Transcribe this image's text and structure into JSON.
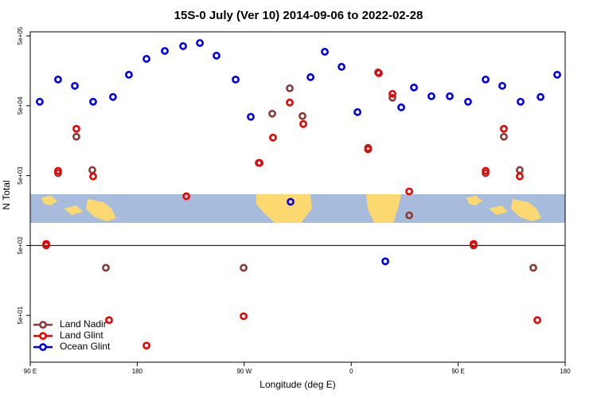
{
  "chart_data": {
    "type": "scatter",
    "title": "15S-0 July (Ver 10)   2014-09-06 to 2022-02-28",
    "xlabel": "Longitude (deg E)",
    "ylabel": "N Total",
    "log_y": true,
    "legend": "lower left",
    "xlim": [
      90,
      540
    ],
    "xticks": [
      {
        "value": 90,
        "label": "90 E"
      },
      {
        "value": 180,
        "label": "180"
      },
      {
        "value": 270,
        "label": "90 W"
      },
      {
        "value": 360,
        "label": "0"
      },
      {
        "value": 450,
        "label": "90 E"
      },
      {
        "value": 540,
        "label": "180"
      }
    ],
    "ylim": [
      10.7,
      570000
    ],
    "yticks": [
      {
        "value": 50,
        "label": "5e+01"
      },
      {
        "value": 500,
        "label": "5e+02"
      },
      {
        "value": 5000,
        "label": "5e+03"
      },
      {
        "value": 50000,
        "label": "5e+04"
      },
      {
        "value": 500000,
        "label": "5e+05"
      }
    ],
    "series": [
      {
        "name": "Land Nadir",
        "color": "#8b3a3a",
        "x": [
          103.4,
          113.4,
          128.8,
          142.2,
          153.6,
          269.5,
          282.2,
          293.6,
          308.3,
          319.0,
          374.2,
          382.6,
          394.7,
          408.8,
          463.0,
          473.1,
          488.4,
          501.8,
          513.2
        ],
        "values": [
          500,
          5410,
          18000,
          6010,
          240,
          240,
          7600,
          38500,
          88900,
          35600,
          12500,
          150000,
          65000,
          1350,
          500,
          5410,
          18000,
          6010,
          240
        ]
      },
      {
        "name": "Land Glint",
        "color": "#ee0000",
        "x": [
          103.4,
          113.4,
          128.8,
          142.9,
          156.3,
          187.8,
          221.3,
          269.5,
          282.9,
          294.2,
          308.3,
          319.7,
          374.2,
          383.3,
          394.7,
          408.8,
          463.0,
          473.1,
          488.4,
          501.8,
          516.6
        ],
        "values": [
          527,
          5850,
          23400,
          4870,
          42.8,
          18.5,
          2530,
          48.7,
          7600,
          17500,
          55500,
          27400,
          11900,
          146000,
          74000,
          2970,
          527,
          5850,
          23400,
          4870,
          42.8
        ]
      },
      {
        "name": "Ocean Glint",
        "color": "#0000ee",
        "x": [
          98.0,
          113.4,
          127.5,
          142.9,
          159.6,
          173.0,
          187.8,
          203.2,
          218.6,
          232.7,
          246.7,
          262.8,
          275.5,
          309.0,
          325.8,
          337.8,
          351.9,
          365.3,
          388.7,
          402.1,
          412.8,
          427.5,
          442.9,
          458.3,
          473.1,
          487.1,
          502.5,
          519.3,
          533.3
        ],
        "values": [
          57000,
          118600,
          96200,
          57000,
          66700,
          138700,
          234000,
          304000,
          356000,
          395000,
          260000,
          118600,
          34700,
          2110,
          128000,
          296000,
          180000,
          40500,
          297,
          47400,
          91200,
          68400,
          68400,
          57000,
          118600,
          96200,
          57000,
          66700,
          138700
        ]
      }
    ]
  }
}
